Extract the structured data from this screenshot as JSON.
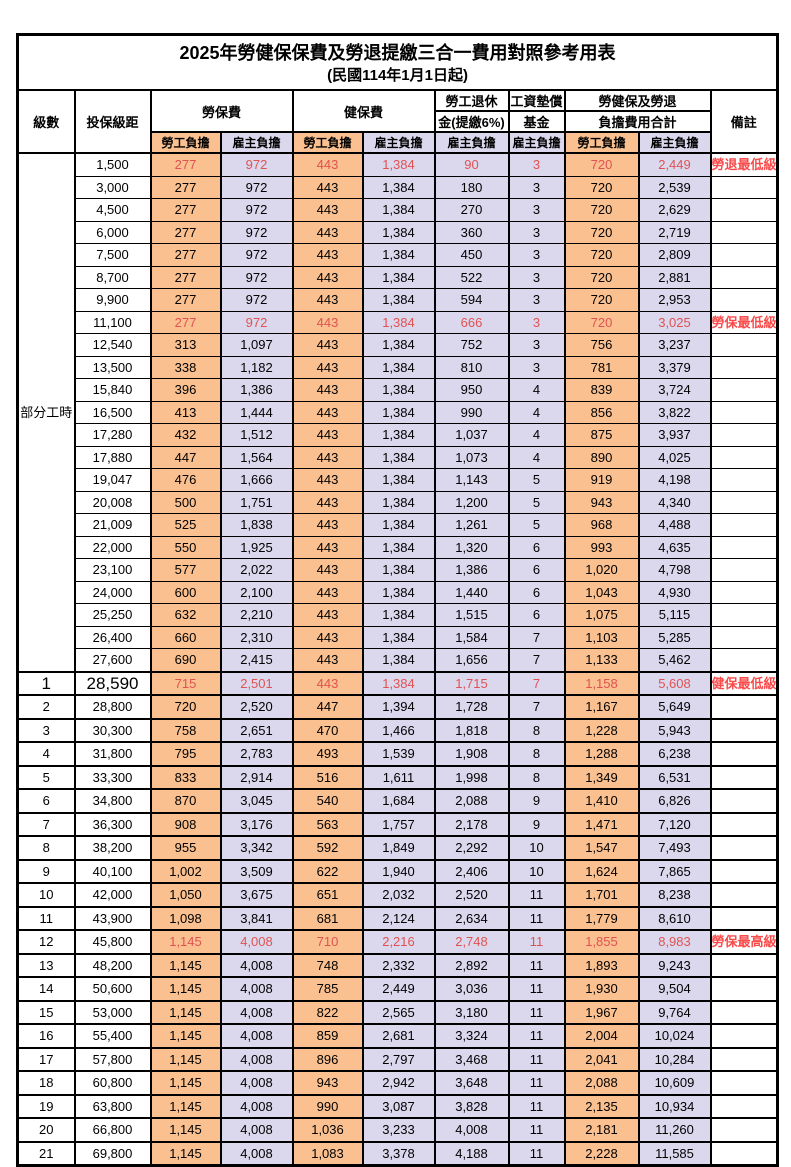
{
  "title": {
    "line1": "2025年勞健保保費及勞退提繳三合一費用對照參考用表",
    "line2": "(民國114年1月1日起)"
  },
  "header": {
    "level": "級數",
    "bracket": "投保級距",
    "labor_group": "勞保費",
    "health_group": "健保費",
    "pension_line1": "勞工退休",
    "pension_line2": "金(提繳6%)",
    "wage_fund_line1": "工資墊償",
    "wage_fund_line2": "基金",
    "total_line1": "勞健保及勞退",
    "total_line2": "負擔費用合計",
    "employee": "勞工負擔",
    "employer": "雇主負擔",
    "note": "備註"
  },
  "part_time_label": "部分工時",
  "colors": {
    "employee_bg": "#FAC090",
    "employer_bg": "#DBD8EE",
    "highlight_value_text": "#E05252",
    "note_text": "#FA4B4B",
    "border": "#000000"
  },
  "rows": [
    {
      "level": "",
      "bracket": "1,500",
      "values": [
        "277",
        "972",
        "443",
        "1,384",
        "90",
        "3",
        "720",
        "2,449"
      ],
      "note": "勞退最低級距",
      "red": true
    },
    {
      "level": "",
      "bracket": "3,000",
      "values": [
        "277",
        "972",
        "443",
        "1,384",
        "180",
        "3",
        "720",
        "2,539"
      ],
      "note": ""
    },
    {
      "level": "",
      "bracket": "4,500",
      "values": [
        "277",
        "972",
        "443",
        "1,384",
        "270",
        "3",
        "720",
        "2,629"
      ],
      "note": ""
    },
    {
      "level": "",
      "bracket": "6,000",
      "values": [
        "277",
        "972",
        "443",
        "1,384",
        "360",
        "3",
        "720",
        "2,719"
      ],
      "note": ""
    },
    {
      "level": "",
      "bracket": "7,500",
      "values": [
        "277",
        "972",
        "443",
        "1,384",
        "450",
        "3",
        "720",
        "2,809"
      ],
      "note": ""
    },
    {
      "level": "",
      "bracket": "8,700",
      "values": [
        "277",
        "972",
        "443",
        "1,384",
        "522",
        "3",
        "720",
        "2,881"
      ],
      "note": ""
    },
    {
      "level": "",
      "bracket": "9,900",
      "values": [
        "277",
        "972",
        "443",
        "1,384",
        "594",
        "3",
        "720",
        "2,953"
      ],
      "note": ""
    },
    {
      "level": "",
      "bracket": "11,100",
      "values": [
        "277",
        "972",
        "443",
        "1,384",
        "666",
        "3",
        "720",
        "3,025"
      ],
      "note": "勞保最低級距",
      "red": true
    },
    {
      "level": "",
      "bracket": "12,540",
      "values": [
        "313",
        "1,097",
        "443",
        "1,384",
        "752",
        "3",
        "756",
        "3,237"
      ],
      "note": ""
    },
    {
      "level": "",
      "bracket": "13,500",
      "values": [
        "338",
        "1,182",
        "443",
        "1,384",
        "810",
        "3",
        "781",
        "3,379"
      ],
      "note": ""
    },
    {
      "level": "",
      "bracket": "15,840",
      "values": [
        "396",
        "1,386",
        "443",
        "1,384",
        "950",
        "4",
        "839",
        "3,724"
      ],
      "note": ""
    },
    {
      "level": "",
      "bracket": "16,500",
      "values": [
        "413",
        "1,444",
        "443",
        "1,384",
        "990",
        "4",
        "856",
        "3,822"
      ],
      "note": ""
    },
    {
      "level": "",
      "bracket": "17,280",
      "values": [
        "432",
        "1,512",
        "443",
        "1,384",
        "1,037",
        "4",
        "875",
        "3,937"
      ],
      "note": ""
    },
    {
      "level": "",
      "bracket": "17,880",
      "values": [
        "447",
        "1,564",
        "443",
        "1,384",
        "1,073",
        "4",
        "890",
        "4,025"
      ],
      "note": ""
    },
    {
      "level": "",
      "bracket": "19,047",
      "values": [
        "476",
        "1,666",
        "443",
        "1,384",
        "1,143",
        "5",
        "919",
        "4,198"
      ],
      "note": ""
    },
    {
      "level": "",
      "bracket": "20,008",
      "values": [
        "500",
        "1,751",
        "443",
        "1,384",
        "1,200",
        "5",
        "943",
        "4,340"
      ],
      "note": ""
    },
    {
      "level": "",
      "bracket": "21,009",
      "values": [
        "525",
        "1,838",
        "443",
        "1,384",
        "1,261",
        "5",
        "968",
        "4,488"
      ],
      "note": ""
    },
    {
      "level": "",
      "bracket": "22,000",
      "values": [
        "550",
        "1,925",
        "443",
        "1,384",
        "1,320",
        "6",
        "993",
        "4,635"
      ],
      "note": ""
    },
    {
      "level": "",
      "bracket": "23,100",
      "values": [
        "577",
        "2,022",
        "443",
        "1,384",
        "1,386",
        "6",
        "1,020",
        "4,798"
      ],
      "note": ""
    },
    {
      "level": "",
      "bracket": "24,000",
      "values": [
        "600",
        "2,100",
        "443",
        "1,384",
        "1,440",
        "6",
        "1,043",
        "4,930"
      ],
      "note": ""
    },
    {
      "level": "",
      "bracket": "25,250",
      "values": [
        "632",
        "2,210",
        "443",
        "1,384",
        "1,515",
        "6",
        "1,075",
        "5,115"
      ],
      "note": ""
    },
    {
      "level": "",
      "bracket": "26,400",
      "values": [
        "660",
        "2,310",
        "443",
        "1,384",
        "1,584",
        "7",
        "1,103",
        "5,285"
      ],
      "note": ""
    },
    {
      "level": "",
      "bracket": "27,600",
      "values": [
        "690",
        "2,415",
        "443",
        "1,384",
        "1,656",
        "7",
        "1,133",
        "5,462"
      ],
      "note": ""
    },
    {
      "level": "1",
      "bracket": "28,590",
      "values": [
        "715",
        "2,501",
        "443",
        "1,384",
        "1,715",
        "7",
        "1,158",
        "5,608"
      ],
      "note": "健保最低級距",
      "red": true,
      "big": true
    },
    {
      "level": "2",
      "bracket": "28,800",
      "values": [
        "720",
        "2,520",
        "447",
        "1,394",
        "1,728",
        "7",
        "1,167",
        "5,649"
      ],
      "note": ""
    },
    {
      "level": "3",
      "bracket": "30,300",
      "values": [
        "758",
        "2,651",
        "470",
        "1,466",
        "1,818",
        "8",
        "1,228",
        "5,943"
      ],
      "note": ""
    },
    {
      "level": "4",
      "bracket": "31,800",
      "values": [
        "795",
        "2,783",
        "493",
        "1,539",
        "1,908",
        "8",
        "1,288",
        "6,238"
      ],
      "note": ""
    },
    {
      "level": "5",
      "bracket": "33,300",
      "values": [
        "833",
        "2,914",
        "516",
        "1,611",
        "1,998",
        "8",
        "1,349",
        "6,531"
      ],
      "note": ""
    },
    {
      "level": "6",
      "bracket": "34,800",
      "values": [
        "870",
        "3,045",
        "540",
        "1,684",
        "2,088",
        "9",
        "1,410",
        "6,826"
      ],
      "note": ""
    },
    {
      "level": "7",
      "bracket": "36,300",
      "values": [
        "908",
        "3,176",
        "563",
        "1,757",
        "2,178",
        "9",
        "1,471",
        "7,120"
      ],
      "note": ""
    },
    {
      "level": "8",
      "bracket": "38,200",
      "values": [
        "955",
        "3,342",
        "592",
        "1,849",
        "2,292",
        "10",
        "1,547",
        "7,493"
      ],
      "note": ""
    },
    {
      "level": "9",
      "bracket": "40,100",
      "values": [
        "1,002",
        "3,509",
        "622",
        "1,940",
        "2,406",
        "10",
        "1,624",
        "7,865"
      ],
      "note": ""
    },
    {
      "level": "10",
      "bracket": "42,000",
      "values": [
        "1,050",
        "3,675",
        "651",
        "2,032",
        "2,520",
        "11",
        "1,701",
        "8,238"
      ],
      "note": ""
    },
    {
      "level": "11",
      "bracket": "43,900",
      "values": [
        "1,098",
        "3,841",
        "681",
        "2,124",
        "2,634",
        "11",
        "1,779",
        "8,610"
      ],
      "note": ""
    },
    {
      "level": "12",
      "bracket": "45,800",
      "values": [
        "1,145",
        "4,008",
        "710",
        "2,216",
        "2,748",
        "11",
        "1,855",
        "8,983"
      ],
      "note": "勞保最高級距",
      "red": true
    },
    {
      "level": "13",
      "bracket": "48,200",
      "values": [
        "1,145",
        "4,008",
        "748",
        "2,332",
        "2,892",
        "11",
        "1,893",
        "9,243"
      ],
      "note": ""
    },
    {
      "level": "14",
      "bracket": "50,600",
      "values": [
        "1,145",
        "4,008",
        "785",
        "2,449",
        "3,036",
        "11",
        "1,930",
        "9,504"
      ],
      "note": ""
    },
    {
      "level": "15",
      "bracket": "53,000",
      "values": [
        "1,145",
        "4,008",
        "822",
        "2,565",
        "3,180",
        "11",
        "1,967",
        "9,764"
      ],
      "note": ""
    },
    {
      "level": "16",
      "bracket": "55,400",
      "values": [
        "1,145",
        "4,008",
        "859",
        "2,681",
        "3,324",
        "11",
        "2,004",
        "10,024"
      ],
      "note": ""
    },
    {
      "level": "17",
      "bracket": "57,800",
      "values": [
        "1,145",
        "4,008",
        "896",
        "2,797",
        "3,468",
        "11",
        "2,041",
        "10,284"
      ],
      "note": ""
    },
    {
      "level": "18",
      "bracket": "60,800",
      "values": [
        "1,145",
        "4,008",
        "943",
        "2,942",
        "3,648",
        "11",
        "2,088",
        "10,609"
      ],
      "note": ""
    },
    {
      "level": "19",
      "bracket": "63,800",
      "values": [
        "1,145",
        "4,008",
        "990",
        "3,087",
        "3,828",
        "11",
        "2,135",
        "10,934"
      ],
      "note": ""
    },
    {
      "level": "20",
      "bracket": "66,800",
      "values": [
        "1,145",
        "4,008",
        "1,036",
        "3,233",
        "4,008",
        "11",
        "2,181",
        "11,260"
      ],
      "note": ""
    },
    {
      "level": "21",
      "bracket": "69,800",
      "values": [
        "1,145",
        "4,008",
        "1,083",
        "3,378",
        "4,188",
        "11",
        "2,228",
        "11,585"
      ],
      "note": ""
    }
  ]
}
